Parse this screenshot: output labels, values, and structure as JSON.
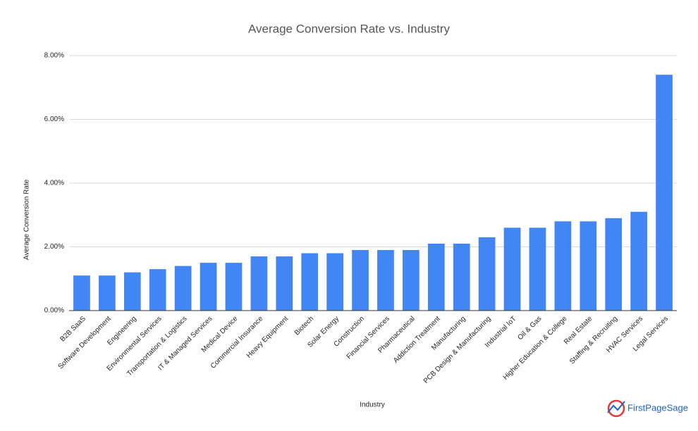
{
  "chart_data": {
    "type": "bar",
    "title": "Average Conversion Rate vs. Industry",
    "x_label": "Industry",
    "y_label": "Average Conversion Rate",
    "categories": [
      "B2B SaaS",
      "Software Development",
      "Engineering",
      "Environmental Services",
      "Transportation & Logistics",
      "IT & Managed Services",
      "Medical Device",
      "Commercial Insurance",
      "Heavy Equipment",
      "Biotech",
      "Solar Energy",
      "Construction",
      "Financial Services",
      "Pharmaceutical",
      "Addiction Treatment",
      "Manufacturing",
      "PCB Design & Manufacturing",
      "Industrial IoT",
      "Oil & Gas",
      "Higher Education & College",
      "Real Estate",
      "Staffing & Recruiting",
      "HVAC Services",
      "Legal Services"
    ],
    "values": [
      1.1,
      1.1,
      1.2,
      1.3,
      1.4,
      1.5,
      1.5,
      1.7,
      1.7,
      1.8,
      1.8,
      1.9,
      1.9,
      1.9,
      2.1,
      2.1,
      2.3,
      2.6,
      2.6,
      2.8,
      2.8,
      2.9,
      3.1,
      7.4
    ],
    "color": "#4285f4",
    "ylim": [
      0,
      8
    ],
    "yticks": [
      {
        "value": 0,
        "label": "0.00%"
      },
      {
        "value": 2,
        "label": "2.00%"
      },
      {
        "value": 4,
        "label": "4.00%"
      },
      {
        "value": 6,
        "label": "6.00%"
      },
      {
        "value": 8,
        "label": "8.00%"
      }
    ],
    "grid": true
  },
  "watermark": "FirstPageSage"
}
